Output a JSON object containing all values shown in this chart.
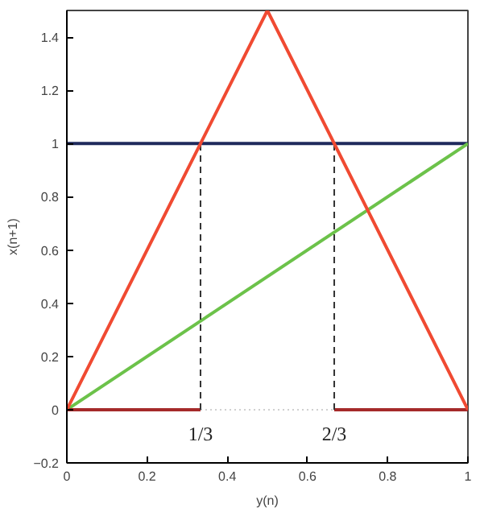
{
  "chart_data": {
    "type": "line",
    "xlabel": "y(n)",
    "ylabel": "x(n+1)",
    "xlim": [
      0,
      1
    ],
    "ylim": [
      -0.2,
      1.5
    ],
    "xticks": [
      0,
      0.2,
      0.4,
      0.6,
      0.8,
      1
    ],
    "yticks": [
      -0.2,
      0,
      0.2,
      0.4,
      0.6,
      0.8,
      1,
      1.2,
      1.4
    ],
    "grid": false,
    "marker": "none",
    "series": [
      {
        "x": [
          0,
          1
        ],
        "values": [
          1,
          1
        ],
        "color": "#1f2a5c",
        "line_style": "solid"
      },
      {
        "x": [
          0,
          1
        ],
        "values": [
          0,
          1
        ],
        "color": "#6cc24a",
        "line_style": "solid"
      },
      {
        "x": [
          0.3333,
          0.6667
        ],
        "values": [
          0,
          0
        ],
        "color": "#d0d0d0",
        "line_style": "dotted"
      },
      {
        "x": [
          0,
          0.3333
        ],
        "values": [
          0,
          0
        ],
        "color": "#a52a2a",
        "line_style": "solid"
      },
      {
        "x": [
          0.6667,
          1
        ],
        "values": [
          0,
          0
        ],
        "color": "#a52a2a",
        "line_style": "solid"
      },
      {
        "x": [
          0.3333,
          0.3333
        ],
        "values": [
          0,
          1
        ],
        "color": "#333333",
        "line_style": "dashed"
      },
      {
        "x": [
          0.6667,
          0.6667
        ],
        "values": [
          0,
          1
        ],
        "color": "#333333",
        "line_style": "dashed"
      },
      {
        "x": [
          0,
          0.5,
          1
        ],
        "values": [
          0,
          1.5,
          0
        ],
        "color": "#f04a32",
        "line_style": "solid"
      }
    ],
    "annotations": [
      {
        "text": "1/3",
        "x": 0.3333,
        "y": 0
      },
      {
        "text": "2/3",
        "x": 0.6667,
        "y": 0
      }
    ]
  }
}
